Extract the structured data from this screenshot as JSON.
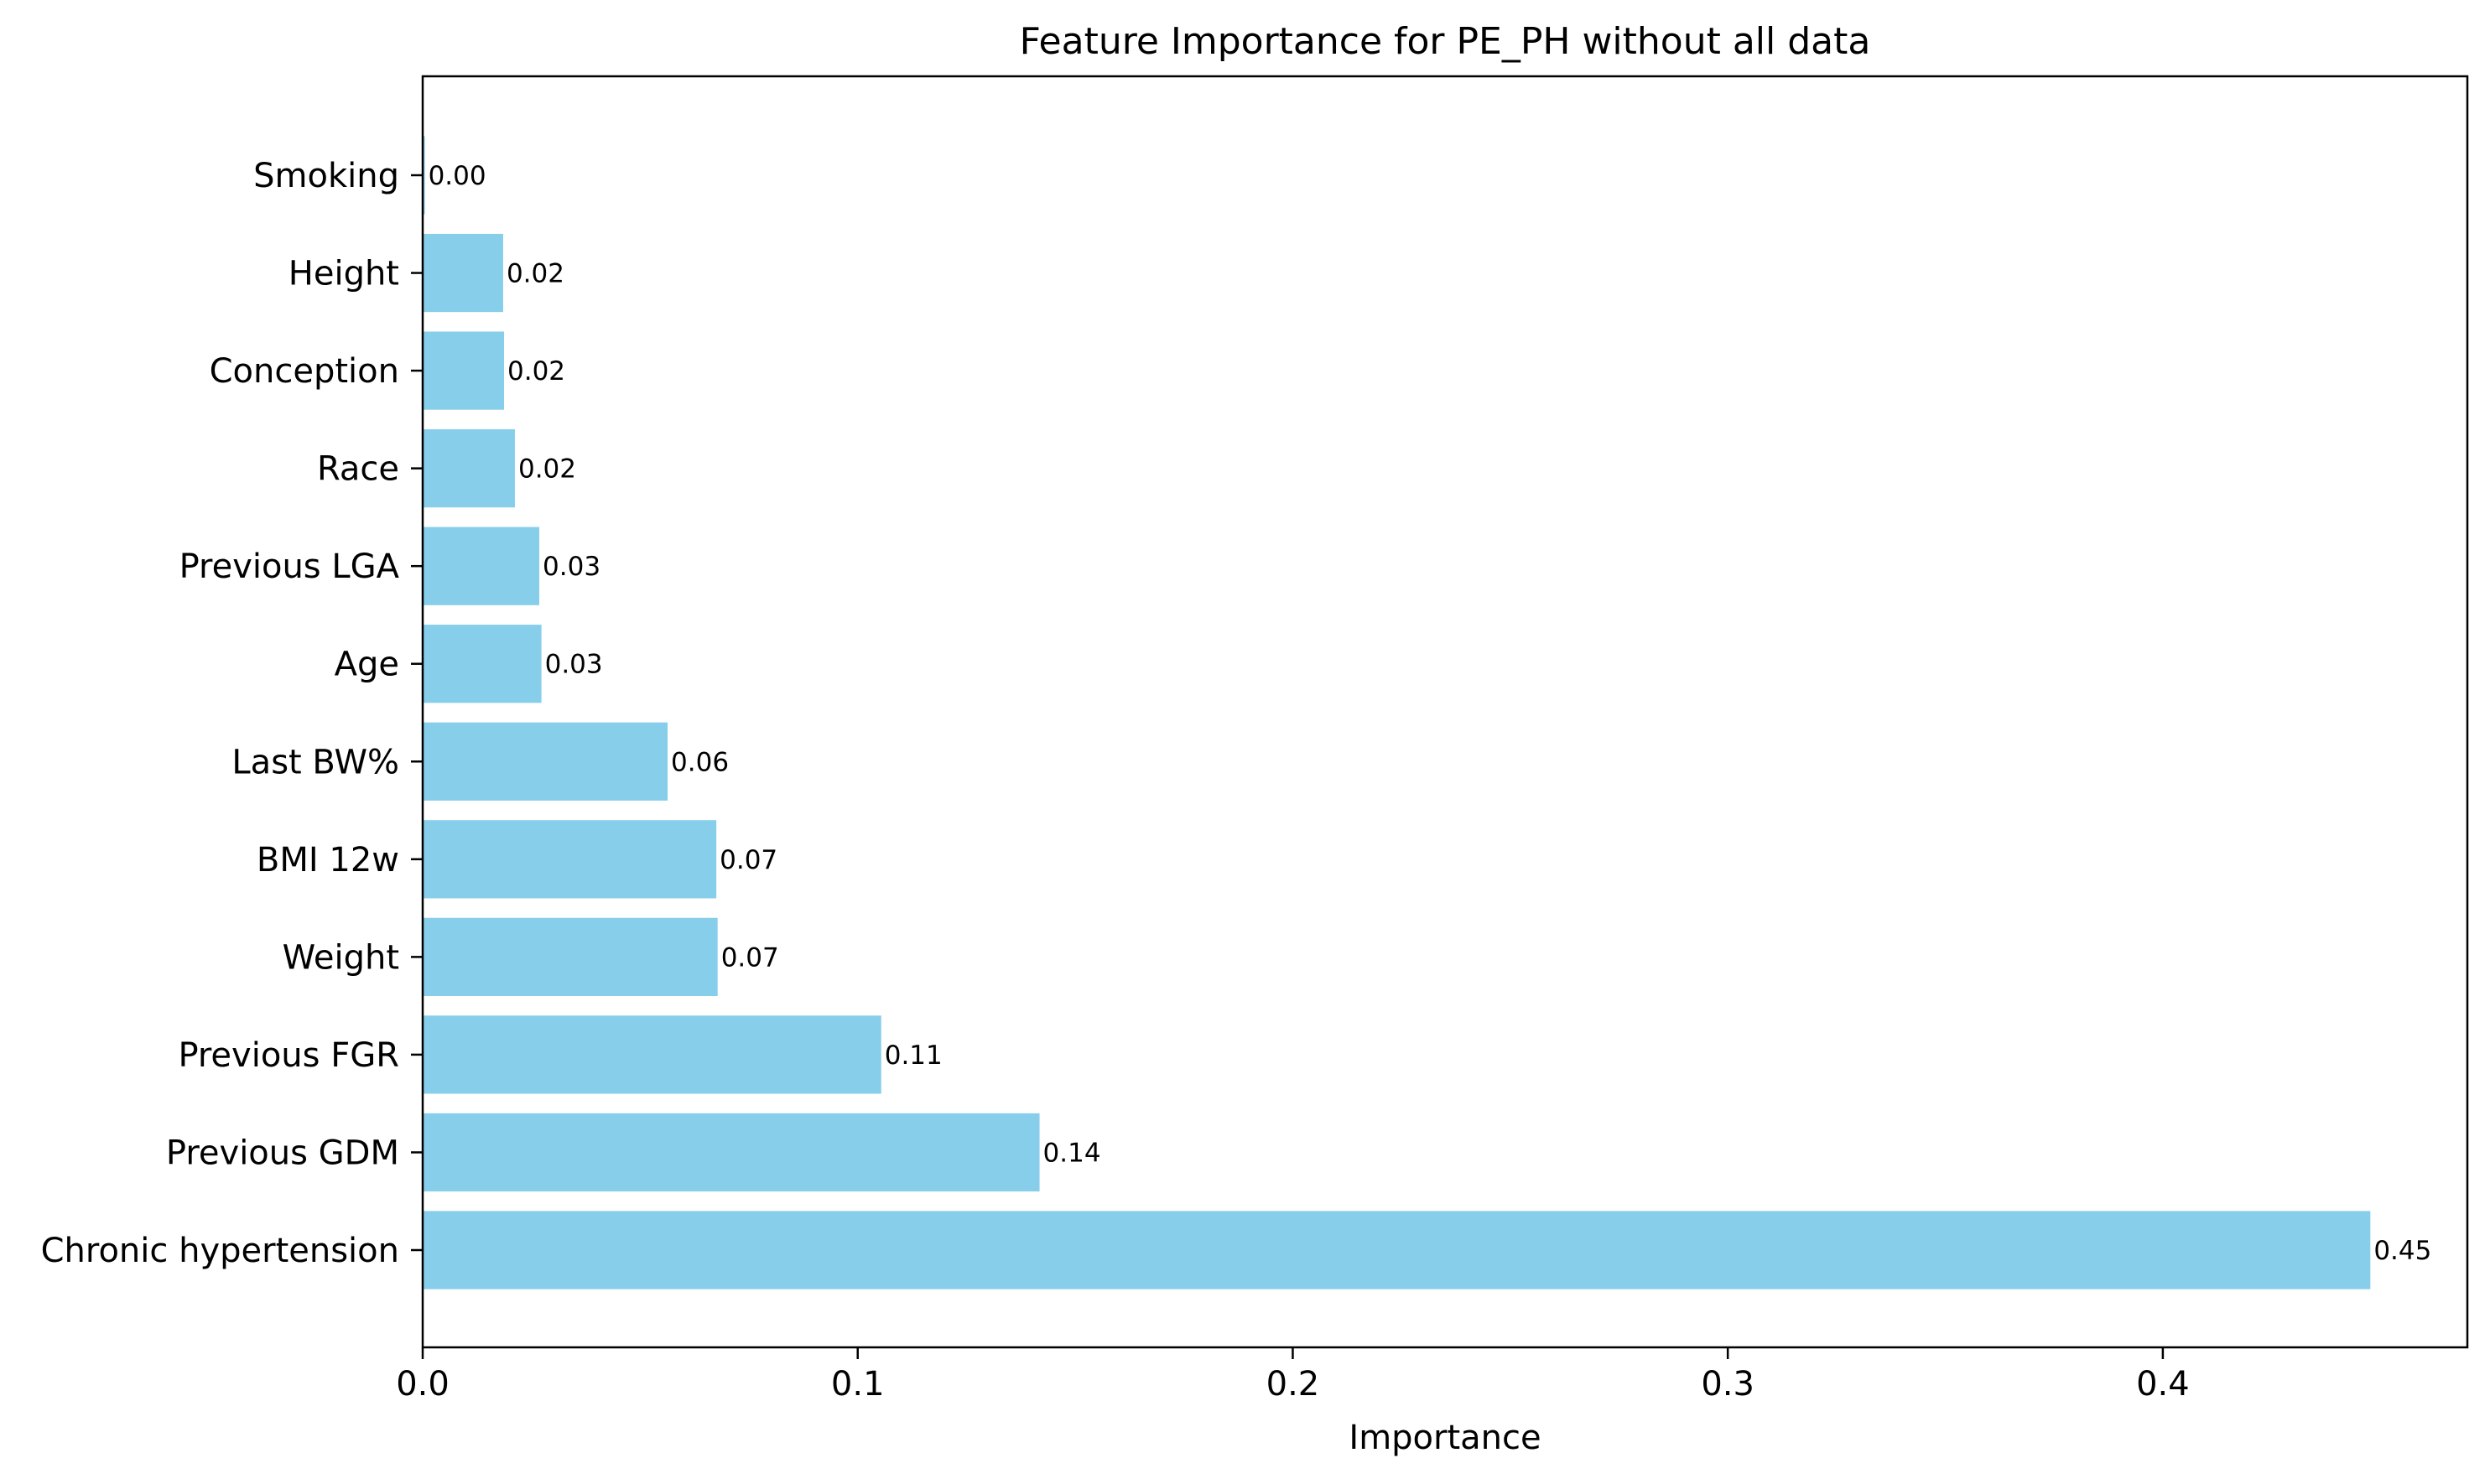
{
  "chart_data": {
    "type": "bar",
    "orientation": "horizontal",
    "title": "Feature Importance for PE_PH without all data",
    "xlabel": "Importance",
    "ylabel": "",
    "xlim": [
      0,
      0.47
    ],
    "xticks": [
      0.0,
      0.1,
      0.2,
      0.3,
      0.4
    ],
    "xtick_labels": [
      "0.0",
      "0.1",
      "0.2",
      "0.3",
      "0.4"
    ],
    "grid": false,
    "bar_color": "#87CEEB",
    "categories": [
      "Smoking",
      "Height",
      "Conception",
      "Race",
      "Previous LGA",
      "Age",
      "Last BW%",
      "BMI 12w",
      "Weight",
      "Previous FGR",
      "Previous GDM",
      "Chronic hypertension"
    ],
    "values": [
      0.0005,
      0.0185,
      0.0187,
      0.0212,
      0.0268,
      0.0273,
      0.0563,
      0.0675,
      0.0678,
      0.1054,
      0.1418,
      0.4477
    ],
    "data_labels": [
      "0.00",
      "0.02",
      "0.02",
      "0.02",
      "0.03",
      "0.03",
      "0.06",
      "0.07",
      "0.07",
      "0.11",
      "0.14",
      "0.45"
    ]
  }
}
